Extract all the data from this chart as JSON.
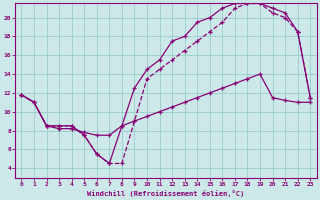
{
  "xlabel": "Windchill (Refroidissement éolien,°C)",
  "bg_color": "#cce8e8",
  "grid_color": "#99cccc",
  "line_color": "#880077",
  "xlim": [
    -0.5,
    23.5
  ],
  "ylim": [
    3.0,
    21.5
  ],
  "yticks": [
    4,
    6,
    8,
    10,
    12,
    14,
    16,
    18,
    20
  ],
  "xticks": [
    0,
    1,
    2,
    3,
    4,
    5,
    6,
    7,
    8,
    9,
    10,
    11,
    12,
    13,
    14,
    15,
    16,
    17,
    18,
    19,
    20,
    21,
    22,
    23
  ],
  "line1_x": [
    0,
    1,
    2,
    3,
    4,
    5,
    6,
    7,
    8,
    9,
    10,
    11,
    12,
    13,
    14,
    15,
    16,
    17,
    18,
    19,
    20,
    21,
    22,
    23
  ],
  "line1_y": [
    11.8,
    11.0,
    8.5,
    8.2,
    8.2,
    7.8,
    7.5,
    7.5,
    8.5,
    9.0,
    9.5,
    10.0,
    10.5,
    11.0,
    11.5,
    12.0,
    12.5,
    13.0,
    13.5,
    14.0,
    11.5,
    11.2,
    11.0,
    11.0
  ],
  "line2_x": [
    0,
    1,
    2,
    3,
    4,
    5,
    6,
    7,
    8,
    9,
    10,
    11,
    12,
    13,
    14,
    15,
    16,
    17,
    18,
    19,
    20,
    21,
    22,
    23
  ],
  "line2_y": [
    11.8,
    11.0,
    8.5,
    8.5,
    8.5,
    7.5,
    5.5,
    4.5,
    4.5,
    9.0,
    13.5,
    14.5,
    15.5,
    16.5,
    17.5,
    18.5,
    19.5,
    21.0,
    21.5,
    21.5,
    20.5,
    20.0,
    18.5,
    11.5
  ],
  "line3_x": [
    0,
    1,
    2,
    3,
    4,
    5,
    6,
    7,
    8,
    9,
    10,
    11,
    12,
    13,
    14,
    15,
    16,
    17,
    18,
    19,
    20,
    21,
    22,
    23
  ],
  "line3_y": [
    11.8,
    11.0,
    8.5,
    8.5,
    8.5,
    7.5,
    5.5,
    4.5,
    8.5,
    12.5,
    14.5,
    15.5,
    17.5,
    18.0,
    19.5,
    20.0,
    21.0,
    21.5,
    21.5,
    21.5,
    21.0,
    20.5,
    18.5,
    11.5
  ]
}
